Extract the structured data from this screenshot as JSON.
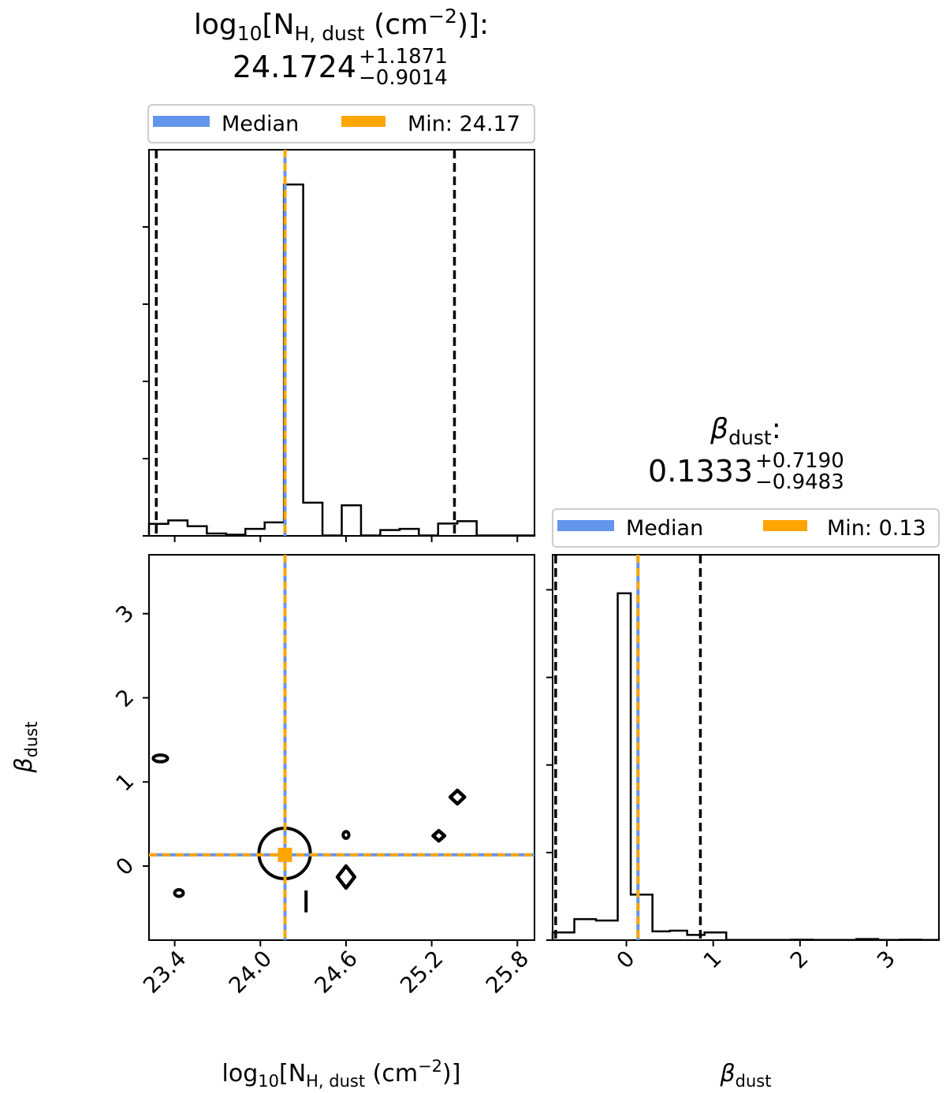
{
  "figure": {
    "p1": {
      "title_line1_main": "log",
      "title_line1_sub": "10",
      "title_line1_rest1": "[N",
      "title_line1_sub2": "H, dust",
      "title_line1_rest2": " (cm",
      "title_line1_sup": "−2",
      "title_line1_rest3": ")]:",
      "title_value": "24.1724",
      "title_plus": "+1.1871",
      "title_minus": "−0.9014"
    },
    "p2": {
      "title_symbol": "β",
      "title_sub": "dust",
      "title_colon": ":",
      "title_value": "0.1333",
      "title_plus": "+0.7190",
      "title_minus": "−0.9483"
    },
    "xlabel_left": {
      "main": "log",
      "sub": "10",
      "rest1": "[N",
      "sub2": "H, dust",
      "rest2": " (cm",
      "sup": "−2",
      "rest3": ")]"
    },
    "xlabel_right": {
      "symbol": "β",
      "sub": "dust"
    },
    "ylabel_left": {
      "symbol": "β",
      "sub": "dust"
    }
  },
  "chart_data": [
    {
      "type": "histogram",
      "panel": "log10 N_H,dust marginal",
      "xlim": [
        23.22,
        25.92
      ],
      "xticks": [
        "23.4",
        "24.0",
        "24.6",
        "25.2",
        "25.8"
      ],
      "bins": [
        23.22,
        23.355,
        23.49,
        23.625,
        23.76,
        23.895,
        24.03,
        24.165,
        24.3,
        24.435,
        24.57,
        24.705,
        24.84,
        24.975,
        25.11,
        25.245,
        25.38,
        25.515,
        25.65,
        25.785,
        25.92
      ],
      "counts": [
        3.1,
        4.0,
        2.5,
        0.6,
        0.3,
        1.8,
        3.5,
        91.0,
        8.6,
        0.1,
        7.9,
        0.1,
        1.5,
        1.8,
        0.1,
        3.2,
        3.8,
        0.1,
        0.1,
        0.1
      ],
      "ylim": [
        0,
        100
      ],
      "median": 24.1724,
      "min": 24.17,
      "quantiles": [
        23.271,
        25.3595
      ],
      "legend": {
        "entries": [
          {
            "label": "Median",
            "color": "#6495ed"
          },
          {
            "label": "Min: 24.17",
            "color": "#ffa500"
          }
        ],
        "placement": "upper center, above axes"
      }
    },
    {
      "type": "histogram",
      "panel": "beta_dust marginal",
      "xlim": [
        -0.85,
        3.6
      ],
      "xticks": [
        "0",
        "1",
        "2",
        "3"
      ],
      "bins": [
        -0.85,
        -0.6,
        -0.35,
        -0.1,
        0.05,
        0.3,
        0.5,
        0.7,
        0.9,
        1.15,
        1.4,
        1.65,
        1.9,
        2.15,
        2.4,
        2.65,
        2.9,
        3.15,
        3.4,
        3.6
      ],
      "counts": [
        2.2,
        6.0,
        5.6,
        99.0,
        13.0,
        2.5,
        2.7,
        1.5,
        2.2,
        0.05,
        0.05,
        0.05,
        0.1,
        0.05,
        0.05,
        0.3,
        0.05,
        0.1,
        0.05
      ],
      "ylim": [
        0,
        110
      ],
      "median": 0.1333,
      "min": 0.13,
      "quantiles": [
        -0.815,
        0.8523
      ],
      "legend": {
        "entries": [
          {
            "label": "Median",
            "color": "#6495ed"
          },
          {
            "label": "Min: 0.13",
            "color": "#ffa500"
          }
        ],
        "placement": "upper center, above axes"
      }
    },
    {
      "type": "contour",
      "panel": "joint log10 N_H,dust vs beta_dust",
      "xlim": [
        23.22,
        25.92
      ],
      "ylim": [
        -0.88,
        3.7
      ],
      "xticks": [
        "23.4",
        "24.0",
        "24.6",
        "25.2",
        "25.8"
      ],
      "yticks": [
        "0",
        "1",
        "2",
        "3"
      ],
      "median_point": [
        24.1724,
        0.1333
      ],
      "contours": [
        {
          "shape": "ellipse",
          "cx": 24.17,
          "cy": 0.15,
          "rx": 0.18,
          "ry": 0.3
        },
        {
          "shape": "ellipse",
          "cx": 23.3,
          "cy": 1.28,
          "rx": 0.05,
          "ry": 0.04
        },
        {
          "shape": "ellipse",
          "cx": 23.43,
          "cy": -0.32,
          "rx": 0.03,
          "ry": 0.04
        },
        {
          "shape": "ellipse",
          "cx": 24.6,
          "cy": 0.37,
          "rx": 0.02,
          "ry": 0.04
        },
        {
          "shape": "diamond",
          "cx": 24.6,
          "cy": -0.13,
          "rx": 0.06,
          "ry": 0.13
        },
        {
          "shape": "diamond",
          "cx": 25.25,
          "cy": 0.36,
          "rx": 0.04,
          "ry": 0.06
        },
        {
          "shape": "diamond",
          "cx": 25.38,
          "cy": 0.82,
          "rx": 0.05,
          "ry": 0.08
        },
        {
          "shape": "vline",
          "cx": 24.32,
          "cy": -0.42,
          "rx": 0,
          "ry": 0.13
        }
      ]
    }
  ]
}
